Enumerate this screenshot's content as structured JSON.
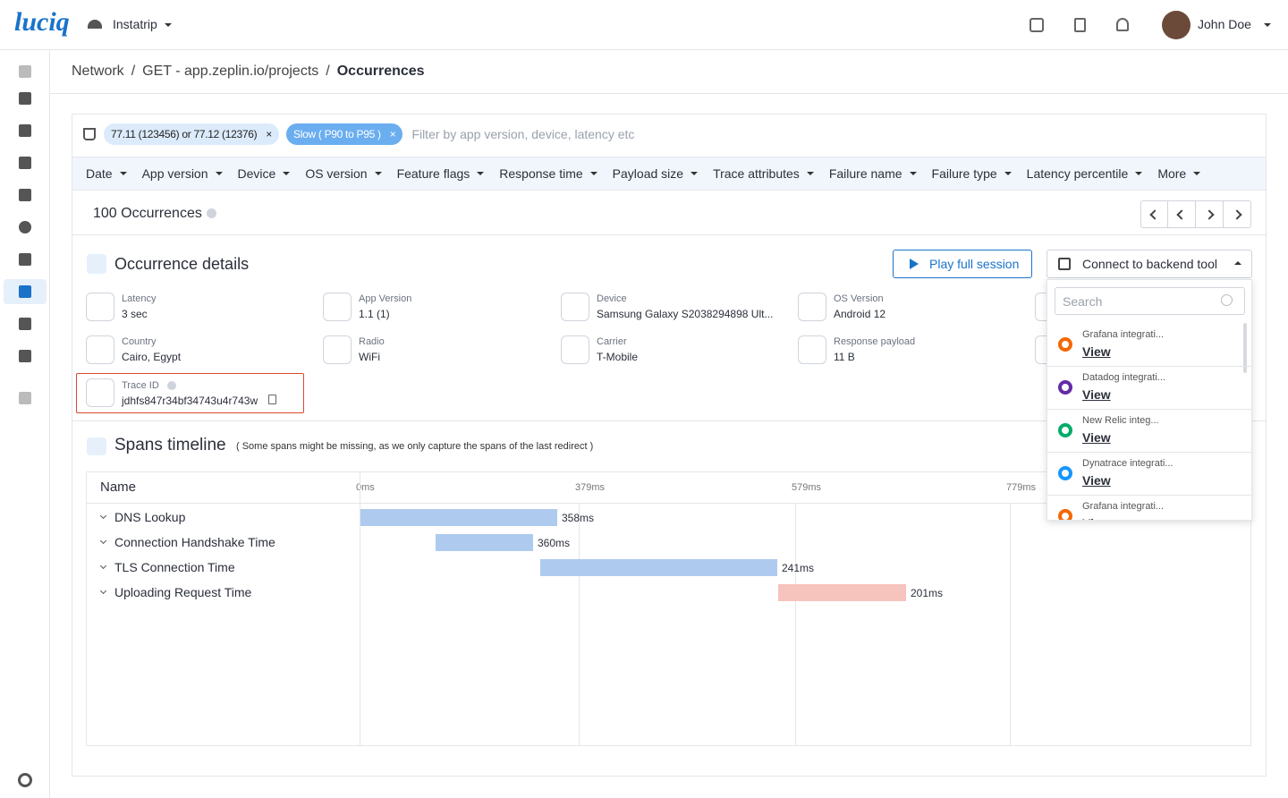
{
  "header": {
    "logo": "luciq",
    "app": "Instatrip",
    "user": "John Doe"
  },
  "breadcrumb": {
    "items": [
      "Network",
      "GET - app.zeplin.io/projects",
      "Occurrences"
    ],
    "separator": "/"
  },
  "filters": {
    "chips": [
      "77.11 (123456) or 77.12 (12376)",
      "Slow ( P90 to P95 )"
    ],
    "chip_remove": "×",
    "placeholder": "Filter by app version, device, latency etc",
    "menus": [
      "Date",
      "App version",
      "Device",
      "OS version",
      "Feature flags",
      "Response time",
      "Payload size",
      "Trace attributes",
      "Failure name",
      "Failure type",
      "Latency percentile",
      "More"
    ]
  },
  "occurrences": {
    "count": "100 Occurrences"
  },
  "details": {
    "title": "Occurrence details",
    "play": "Play full session",
    "connect": "Connect to backend tool",
    "fields": [
      {
        "label": "Latency",
        "value": "3 sec"
      },
      {
        "label": "App Version",
        "value": "1.1 (1)"
      },
      {
        "label": "Device",
        "value": "Samsung Galaxy S2038294898 Ult..."
      },
      {
        "label": "OS Version",
        "value": "Android 12"
      },
      {
        "label": "Country",
        "value": "Cairo, Egypt"
      },
      {
        "label": "Radio",
        "value": "WiFi"
      },
      {
        "label": "Carrier",
        "value": "T-Mobile"
      },
      {
        "label": "Response payload",
        "value": "11 B"
      }
    ],
    "trace": {
      "label": "Trace ID",
      "value": "jdhfs847r34bf34743u4r743w"
    }
  },
  "dropdown": {
    "search": "Search",
    "items": [
      {
        "name": "Grafana integrati...",
        "action": "View"
      },
      {
        "name": "Datadog integrati...",
        "action": "View"
      },
      {
        "name": "New Relic integ...",
        "action": "View"
      },
      {
        "name": "Dynatrace integrati...",
        "action": "View"
      },
      {
        "name": "Grafana integrati...",
        "action": "View"
      }
    ]
  },
  "spans": {
    "title": "Spans timeline",
    "note": "( Some spans might be missing, as we only capture the spans of the last redirect )",
    "name_header": "Name",
    "ticks": [
      "0ms",
      "379ms",
      "579ms",
      "779ms"
    ],
    "rows": [
      {
        "name": "DNS Lookup",
        "duration": "358ms"
      },
      {
        "name": "Connection Handshake Time",
        "duration": "360ms"
      },
      {
        "name": "TLS Connection Time",
        "duration": "241ms"
      },
      {
        "name": "Uploading Request Time",
        "duration": "201ms"
      }
    ]
  }
}
